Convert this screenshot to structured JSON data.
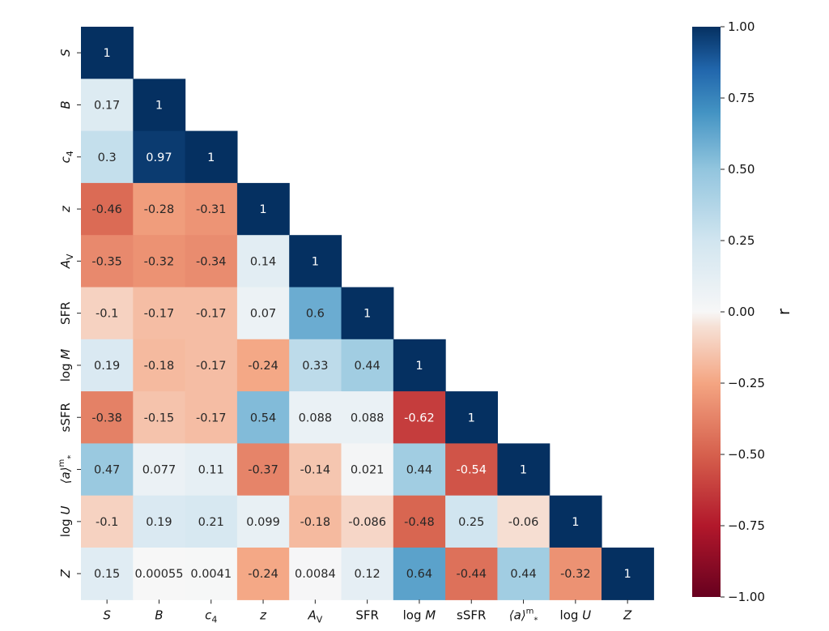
{
  "chart_data": {
    "type": "heatmap",
    "title": "",
    "layout": "lower-triangle",
    "variables": [
      "S",
      "B",
      "c4",
      "z",
      "AV",
      "SFR",
      "log M",
      "sSFR",
      "⟨a⟩*m",
      "log U",
      "Z"
    ],
    "x_tick_labels": [
      {
        "text": "S",
        "italic": true
      },
      {
        "text": "B",
        "italic": true
      },
      {
        "text": "c",
        "sub": "4",
        "italic": true
      },
      {
        "text": "z",
        "italic": true
      },
      {
        "text": "A",
        "sub": "V",
        "italic": true
      },
      {
        "text": "SFR",
        "italic": false
      },
      {
        "text": "log ",
        "italic_part": "M"
      },
      {
        "text": "sSFR",
        "italic": false
      },
      {
        "text": "⟨a⟩",
        "sup": "m",
        "sub": "*",
        "italic": true
      },
      {
        "text": "log ",
        "italic_part": "U"
      },
      {
        "text": "Z",
        "italic": true
      }
    ],
    "matrix": [
      [
        1
      ],
      [
        0.17,
        1
      ],
      [
        0.3,
        0.97,
        1
      ],
      [
        -0.46,
        -0.28,
        -0.31,
        1
      ],
      [
        -0.35,
        -0.32,
        -0.34,
        0.14,
        1
      ],
      [
        -0.1,
        -0.17,
        -0.17,
        0.07,
        0.6,
        1
      ],
      [
        0.19,
        -0.18,
        -0.17,
        -0.24,
        0.33,
        0.44,
        1
      ],
      [
        -0.38,
        -0.15,
        -0.17,
        0.54,
        0.088,
        0.088,
        -0.62,
        1
      ],
      [
        0.47,
        0.077,
        0.11,
        -0.37,
        -0.14,
        0.021,
        0.44,
        -0.54,
        1
      ],
      [
        -0.1,
        0.19,
        0.21,
        0.099,
        -0.18,
        -0.086,
        -0.48,
        0.25,
        -0.06,
        1
      ],
      [
        0.15,
        0.00055,
        0.0041,
        -0.24,
        0.0084,
        0.12,
        0.64,
        -0.44,
        0.44,
        -0.32,
        1
      ]
    ],
    "colorbar": {
      "label": "r",
      "range": [
        -1.0,
        1.0
      ],
      "colormap": "RdBu",
      "ticks": [
        "1.00",
        "0.75",
        "0.50",
        "0.25",
        "0.00",
        "−0.25",
        "−0.50",
        "−0.75",
        "−1.00"
      ]
    }
  }
}
